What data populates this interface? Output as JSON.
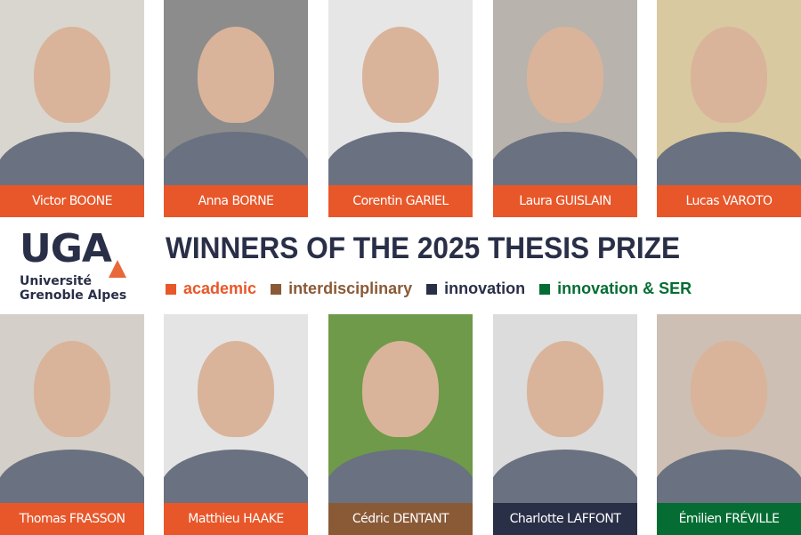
{
  "logo": {
    "letters": "UGA",
    "name_line1": "Université",
    "name_line2": "Grenoble Alpes"
  },
  "title": "WINNERS OF THE 2025 THESIS PRIZE",
  "colors": {
    "academic": "#e8572a",
    "interdisciplinary": "#8a5a37",
    "innovation": "#2a2f48",
    "innovation_ser": "#056d33"
  },
  "categories": [
    {
      "label": "academic",
      "color": "#e8572a"
    },
    {
      "label": "interdisciplinary",
      "color": "#8a5a37"
    },
    {
      "label": "innovation",
      "color": "#2a2f48"
    },
    {
      "label": "innovation & SER",
      "color": "#056d33"
    }
  ],
  "top_row": [
    {
      "name": "Victor BOONE",
      "color": "#e8572a",
      "bg": "#d9d6d0"
    },
    {
      "name": "Anna BORNE",
      "color": "#e8572a",
      "bg": "#8c8c8c"
    },
    {
      "name": "Corentin GARIEL",
      "color": "#e8572a",
      "bg": "#e6e6e6"
    },
    {
      "name": "Laura GUISLAIN",
      "color": "#e8572a",
      "bg": "#b9b3ad"
    },
    {
      "name": "Lucas VAROTO",
      "color": "#e8572a",
      "bg": "#d8c9a0"
    }
  ],
  "bottom_row": [
    {
      "name": "Thomas FRASSON",
      "color": "#e8572a",
      "bg": "#d4cfc8"
    },
    {
      "name": "Matthieu HAAKE",
      "color": "#e8572a",
      "bg": "#e4e4e4"
    },
    {
      "name": "Cédric DENTANT",
      "color": "#8a5a37",
      "bg": "#6f9a4a"
    },
    {
      "name": "Charlotte LAFFONT",
      "color": "#2a2f48",
      "bg": "#dcdcdc"
    },
    {
      "name": "Émilien FRÉVILLE",
      "color": "#056d33",
      "bg": "#cdbfb3"
    }
  ]
}
